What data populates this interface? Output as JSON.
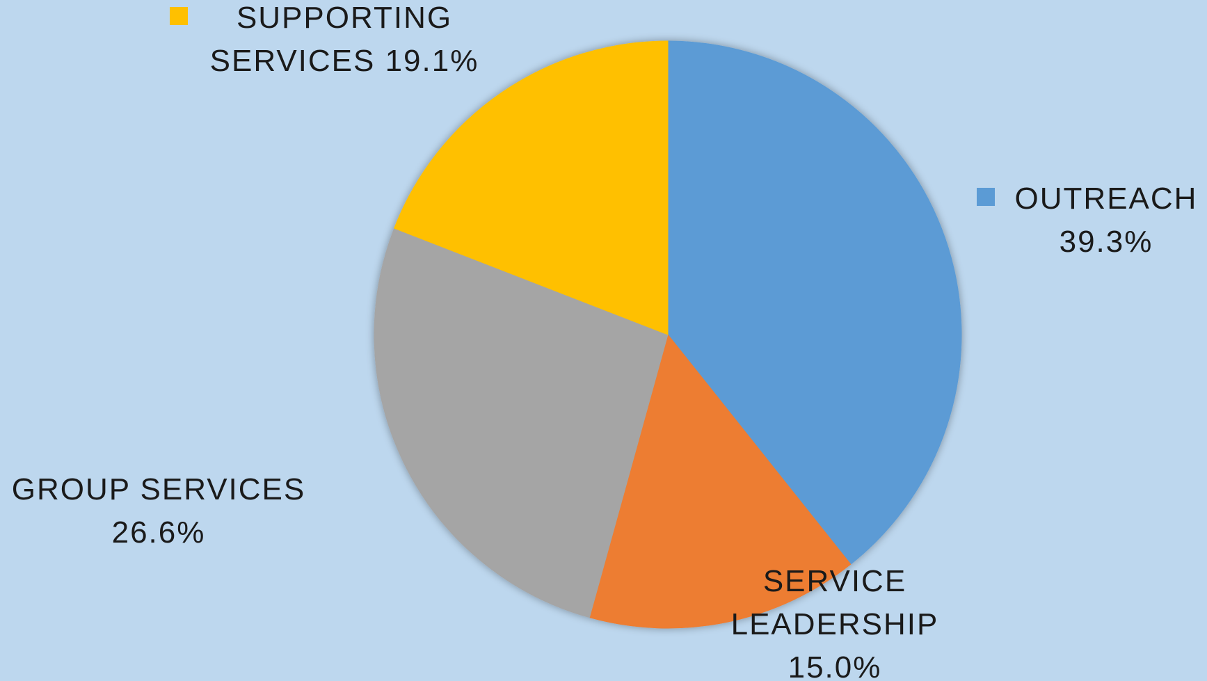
{
  "chart_data": {
    "type": "pie",
    "title": "",
    "slices": [
      {
        "label_lines": [
          "OUTREACH",
          "39.3%"
        ],
        "value": 39.3,
        "color": "#5b9bd5",
        "legend_marker": true
      },
      {
        "label_lines": [
          "SERVICE",
          "LEADERSHIP",
          "15.0%"
        ],
        "value": 15.0,
        "color": "#ed7d31",
        "legend_marker": false
      },
      {
        "label_lines": [
          "GROUP SERVICES",
          "26.6%"
        ],
        "value": 26.6,
        "color": "#a5a5a5",
        "legend_marker": false
      },
      {
        "label_lines": [
          "SUPPORTING",
          "SERVICES 19.1%"
        ],
        "value": 19.1,
        "color": "#ffc000",
        "legend_marker": true
      }
    ],
    "start_angle_deg": 0,
    "direction": "clockwise",
    "background_color": "#bdd7ee"
  }
}
